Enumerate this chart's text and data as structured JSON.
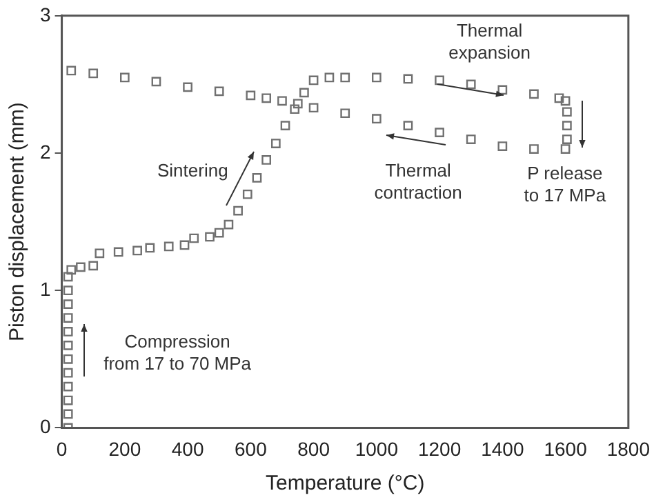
{
  "chart_data": {
    "type": "scatter",
    "xlabel": "Temperature (°C)",
    "ylabel": "Piston displacement (mm)",
    "xlim": [
      0,
      1800
    ],
    "xticks": [
      0,
      200,
      400,
      600,
      800,
      1000,
      1200,
      1400,
      1600,
      1800
    ],
    "ylim": [
      0,
      3
    ],
    "yticks": [
      0,
      1,
      2,
      3
    ],
    "grid": false,
    "legend": false,
    "marker": "square",
    "series": [
      {
        "color": "#707070",
        "x": [
          20,
          20,
          20,
          20,
          20,
          20,
          20,
          20,
          20,
          20,
          20,
          20,
          30,
          60,
          100,
          120,
          180,
          240,
          280,
          340,
          390,
          420,
          470,
          500,
          530,
          560,
          590,
          620,
          650,
          680,
          710,
          740,
          770,
          800,
          850,
          900,
          1000,
          1100,
          1200,
          1300,
          1400,
          1500,
          1580,
          1600,
          1605,
          1605,
          1605,
          1600,
          1500,
          1400,
          1300,
          1200,
          1100,
          1000,
          900,
          800,
          750,
          700,
          650,
          600,
          500,
          400,
          300,
          200,
          100,
          30
        ],
        "values": [
          0,
          0.1,
          0.2,
          0.3,
          0.4,
          0.5,
          0.6,
          0.7,
          0.8,
          0.9,
          1.0,
          1.1,
          1.15,
          1.17,
          1.18,
          1.27,
          1.28,
          1.29,
          1.31,
          1.32,
          1.33,
          1.38,
          1.39,
          1.42,
          1.48,
          1.58,
          1.7,
          1.82,
          1.95,
          2.07,
          2.2,
          2.32,
          2.44,
          2.53,
          2.55,
          2.55,
          2.55,
          2.54,
          2.53,
          2.5,
          2.46,
          2.43,
          2.4,
          2.38,
          2.3,
          2.2,
          2.1,
          2.03,
          2.03,
          2.05,
          2.1,
          2.15,
          2.2,
          2.25,
          2.29,
          2.33,
          2.36,
          2.38,
          2.4,
          2.42,
          2.45,
          2.48,
          2.52,
          2.55,
          2.58,
          2.6
        ]
      }
    ],
    "annotations": [
      "Thermal\nexpansion",
      "Thermal\ncontraction",
      "P release\nto 17 MPa",
      "Sintering",
      "Compression\nfrom 17 to 70 MPa"
    ]
  }
}
